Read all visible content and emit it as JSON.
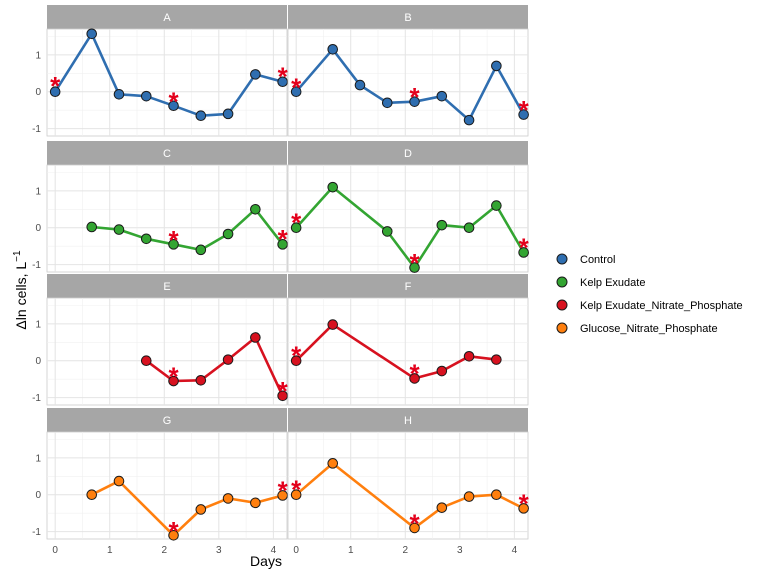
{
  "chart_data": {
    "type": "line",
    "xlabel": "Days",
    "ylabel": "Δln cells, L",
    "ylabel_superscript": "−1",
    "xlim": [
      -0.15,
      4.25
    ],
    "ylim": [
      -1.2,
      1.7
    ],
    "xticks": [
      "0",
      "1",
      "2",
      "3",
      "4"
    ],
    "yticks": [
      "-1",
      "0",
      "1"
    ],
    "grid": true,
    "legend_position": "right",
    "marker_symbol": "*",
    "marker_color": "#e3001b",
    "legend": [
      {
        "label": "Control",
        "color": "#2f6eb0"
      },
      {
        "label": "Kelp Exudate",
        "color": "#33a532"
      },
      {
        "label": "Kelp Exudate_Nitrate_Phosphate",
        "color": "#d7111f"
      },
      {
        "label": "Glucose_Nitrate_Phosphate",
        "color": "#ff7f0e"
      }
    ],
    "panels": [
      {
        "label": "A",
        "series": "Control",
        "color": "#2f6eb0",
        "x": [
          0,
          0.67,
          1.17,
          1.67,
          2.17,
          2.67,
          3.17,
          3.67,
          4.17
        ],
        "y": [
          0.0,
          1.57,
          -0.07,
          -0.12,
          -0.38,
          -0.65,
          -0.6,
          0.47,
          0.27
        ],
        "markers": [
          {
            "x": 0.0,
            "y": 0.23
          },
          {
            "x": 2.17,
            "y": -0.18
          },
          {
            "x": 4.17,
            "y": 0.5
          }
        ]
      },
      {
        "label": "B",
        "series": "Control",
        "color": "#2f6eb0",
        "x": [
          0,
          0.67,
          1.17,
          1.67,
          2.17,
          2.67,
          3.17,
          3.67,
          4.17
        ],
        "y": [
          0.0,
          1.15,
          0.18,
          -0.3,
          -0.27,
          -0.12,
          -0.77,
          0.7,
          -0.62
        ],
        "markers": [
          {
            "x": 0.0,
            "y": 0.2
          },
          {
            "x": 2.17,
            "y": -0.06
          },
          {
            "x": 4.17,
            "y": -0.42
          }
        ]
      },
      {
        "label": "C",
        "series": "Kelp Exudate",
        "color": "#33a532",
        "x": [
          0.67,
          1.17,
          1.67,
          2.17,
          2.67,
          3.17,
          3.67,
          4.17
        ],
        "y": [
          0.02,
          -0.05,
          -0.3,
          -0.45,
          -0.6,
          -0.17,
          0.5,
          -0.45
        ],
        "markers": [
          {
            "x": 2.17,
            "y": -0.25
          },
          {
            "x": 4.17,
            "y": -0.23
          }
        ]
      },
      {
        "label": "D",
        "series": "Kelp Exudate",
        "color": "#33a532",
        "x": [
          0,
          0.67,
          1.67,
          2.17,
          2.67,
          3.17,
          3.67,
          4.17
        ],
        "y": [
          0.0,
          1.1,
          -0.1,
          -1.08,
          0.07,
          0.0,
          0.6,
          -0.67
        ],
        "markers": [
          {
            "x": 0.0,
            "y": 0.22
          },
          {
            "x": 2.17,
            "y": -0.88
          },
          {
            "x": 4.17,
            "y": -0.46
          }
        ]
      },
      {
        "label": "E",
        "series": "Kelp Exudate_Nitrate_Phosphate",
        "color": "#d7111f",
        "x": [
          1.67,
          2.17,
          2.67,
          3.17,
          3.67,
          4.17
        ],
        "y": [
          0.0,
          -0.55,
          -0.53,
          0.03,
          0.63,
          -0.95
        ],
        "markers": [
          {
            "x": 2.17,
            "y": -0.35
          },
          {
            "x": 4.17,
            "y": -0.74
          }
        ]
      },
      {
        "label": "F",
        "series": "Kelp Exudate_Nitrate_Phosphate",
        "color": "#d7111f",
        "x": [
          0,
          0.67,
          2.17,
          2.67,
          3.17,
          3.67
        ],
        "y": [
          0.0,
          0.98,
          -0.48,
          -0.28,
          0.12,
          0.03
        ],
        "markers": [
          {
            "x": 0.0,
            "y": 0.22
          },
          {
            "x": 2.17,
            "y": -0.27
          }
        ]
      },
      {
        "label": "G",
        "series": "Glucose_Nitrate_Phosphate",
        "color": "#ff7f0e",
        "x": [
          0.67,
          1.17,
          2.17,
          2.67,
          3.17,
          3.67,
          4.17
        ],
        "y": [
          0.0,
          0.37,
          -1.1,
          -0.4,
          -0.1,
          -0.22,
          -0.02
        ],
        "markers": [
          {
            "x": 2.17,
            "y": -0.9
          },
          {
            "x": 4.17,
            "y": 0.2
          }
        ]
      },
      {
        "label": "H",
        "series": "Glucose_Nitrate_Phosphate",
        "color": "#ff7f0e",
        "x": [
          0,
          0.67,
          2.17,
          2.67,
          3.17,
          3.67,
          4.17
        ],
        "y": [
          0.0,
          0.85,
          -0.9,
          -0.35,
          -0.05,
          0.0,
          -0.37
        ],
        "markers": [
          {
            "x": 0.0,
            "y": 0.22
          },
          {
            "x": 2.17,
            "y": -0.7
          },
          {
            "x": 4.17,
            "y": -0.15
          }
        ]
      }
    ]
  }
}
